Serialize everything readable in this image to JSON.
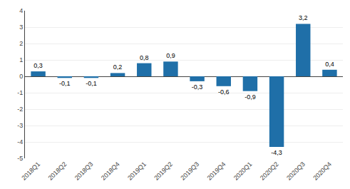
{
  "chart_data": {
    "type": "bar",
    "categories": [
      "2018Q1",
      "2018Q2",
      "2018Q3",
      "2018Q4",
      "2019Q1",
      "2019Q2",
      "2019Q3",
      "2019Q4",
      "2020Q1",
      "2020Q2",
      "2020Q3",
      "2020Q4"
    ],
    "values": [
      0.3,
      -0.1,
      -0.1,
      0.2,
      0.8,
      0.9,
      -0.3,
      -0.6,
      -0.9,
      -4.3,
      3.2,
      0.4
    ],
    "value_labels": [
      "0,3",
      "-0,1",
      "-0,1",
      "0,2",
      "0,8",
      "0,9",
      "-0,3",
      "-0,6",
      "-0,9",
      "-4,3",
      "3,2",
      "0,4"
    ],
    "color": "#1F6FA8",
    "ylim": [
      -5,
      4
    ],
    "yticks": [
      -5,
      -4,
      -3,
      -2,
      -1,
      0,
      1,
      2,
      3,
      4
    ],
    "grid": true,
    "data_labels": true
  }
}
